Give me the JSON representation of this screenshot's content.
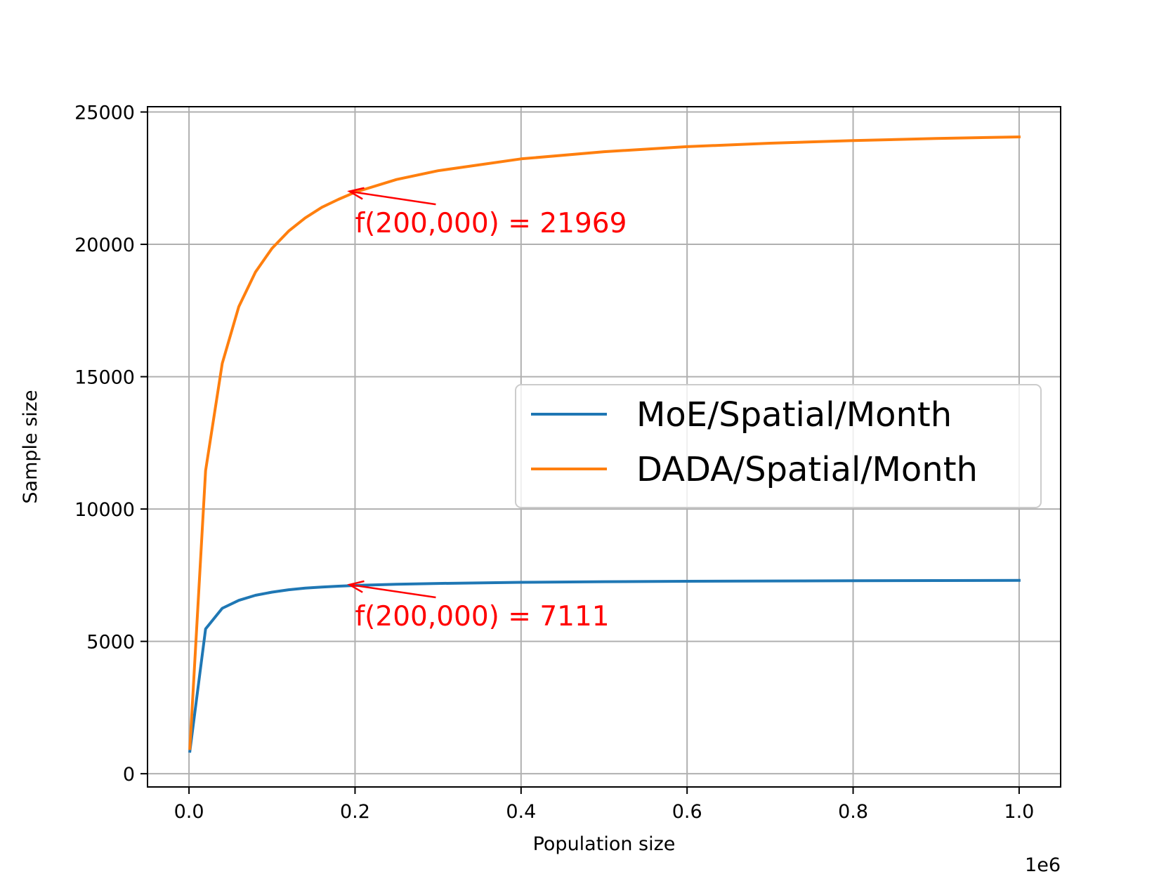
{
  "chart_data": {
    "type": "line",
    "title": "",
    "xlabel": "Population size",
    "ylabel": "Sample size",
    "x_offset_text": "1e6",
    "xlim": [
      -50000,
      1050000
    ],
    "ylim": [
      -500,
      25200
    ],
    "grid": true,
    "x_ticks": [
      0,
      200000,
      400000,
      600000,
      800000,
      1000000
    ],
    "x_tick_labels": [
      "0.0",
      "0.2",
      "0.4",
      "0.6",
      "0.8",
      "1.0"
    ],
    "y_ticks": [
      0,
      5000,
      10000,
      15000,
      20000,
      25000
    ],
    "y_tick_labels": [
      "0",
      "5000",
      "10000",
      "15000",
      "20000",
      "25000"
    ],
    "legend": {
      "position": "center-right"
    },
    "series": [
      {
        "name": "MoE/Spatial/Month",
        "color": "#1f77b4",
        "x": [
          1000,
          20000,
          40000,
          60000,
          80000,
          100000,
          120000,
          140000,
          160000,
          180000,
          200000,
          250000,
          300000,
          400000,
          500000,
          600000,
          700000,
          800000,
          900000,
          1000000
        ],
        "y": [
          850,
          5470,
          6250,
          6550,
          6740,
          6860,
          6950,
          7010,
          7050,
          7085,
          7111,
          7160,
          7190,
          7230,
          7255,
          7270,
          7282,
          7290,
          7297,
          7303
        ]
      },
      {
        "name": "DADA/Spatial/Month",
        "color": "#ff7f0e",
        "x": [
          1000,
          20000,
          40000,
          60000,
          80000,
          100000,
          120000,
          140000,
          160000,
          180000,
          200000,
          250000,
          300000,
          400000,
          500000,
          600000,
          700000,
          800000,
          900000,
          1000000
        ],
        "y": [
          950,
          11450,
          15500,
          17650,
          18950,
          19850,
          20500,
          21000,
          21400,
          21700,
          21969,
          22450,
          22780,
          23230,
          23500,
          23690,
          23820,
          23920,
          24000,
          24060
        ]
      }
    ],
    "annotations": [
      {
        "text": "f(200,000) = 21969",
        "point": [
          200000,
          21969
        ],
        "text_pos": [
          200000,
          20450
        ],
        "color": "#ff0000"
      },
      {
        "text": "f(200,000) = 7111",
        "point": [
          200000,
          7111
        ],
        "text_pos": [
          200000,
          5600
        ],
        "color": "#ff0000"
      }
    ]
  }
}
